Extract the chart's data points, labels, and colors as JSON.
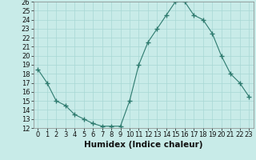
{
  "x": [
    0,
    1,
    2,
    3,
    4,
    5,
    6,
    7,
    8,
    9,
    10,
    11,
    12,
    13,
    14,
    15,
    16,
    17,
    18,
    19,
    20,
    21,
    22,
    23
  ],
  "y": [
    18.5,
    17.0,
    15.0,
    14.5,
    13.5,
    13.0,
    12.5,
    12.2,
    12.2,
    12.2,
    15.0,
    19.0,
    21.5,
    23.0,
    24.5,
    26.0,
    26.0,
    24.5,
    24.0,
    22.5,
    20.0,
    18.0,
    17.0,
    15.5
  ],
  "line_color": "#2d7a6e",
  "marker": "+",
  "marker_size": 5,
  "bg_color": "#c8ebe8",
  "grid_color": "#a8d8d4",
  "xlabel": "Humidex (Indice chaleur)",
  "ylim": [
    12,
    26
  ],
  "xlim_min": -0.5,
  "xlim_max": 23.5,
  "yticks": [
    12,
    13,
    14,
    15,
    16,
    17,
    18,
    19,
    20,
    21,
    22,
    23,
    24,
    25,
    26
  ],
  "xticks": [
    0,
    1,
    2,
    3,
    4,
    5,
    6,
    7,
    8,
    9,
    10,
    11,
    12,
    13,
    14,
    15,
    16,
    17,
    18,
    19,
    20,
    21,
    22,
    23
  ],
  "tick_label_fontsize": 6.0,
  "xlabel_fontsize": 7.5
}
